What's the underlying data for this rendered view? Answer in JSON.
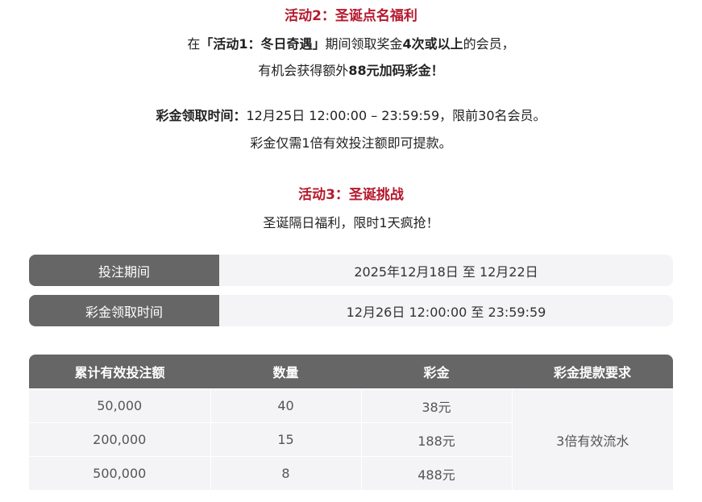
{
  "activity2": {
    "title": "活动2：圣诞点名福利",
    "line1": {
      "pre": "在",
      "bold1": "「活动1：冬日奇遇」",
      "mid": "期间领取奖金",
      "bold2": "4次或以上",
      "post": "的会员，"
    },
    "line2": {
      "pre": "有机会获得额外",
      "bold": "88元加码彩金！"
    },
    "time_label": "彩金领取时间：",
    "time_text": "12月25日 12:00:00 – 23:59:59，限前30名会员。",
    "note": "彩金仅需1倍有效投注额即可提款。"
  },
  "activity3": {
    "title": "活动3：圣诞挑战",
    "subtitle": "圣诞隔日福利，限时1天疯抢！",
    "info": [
      {
        "label": "投注期间",
        "value": "2025年12月18日 至 12月22日"
      },
      {
        "label": "彩金领取时间",
        "value": "12月26日 12:00:00 至 23:59:59"
      }
    ],
    "table": {
      "headers": [
        "累计有效投注额",
        "数量",
        "彩金",
        "彩金提款要求"
      ],
      "rows": [
        [
          "50,000",
          "40",
          "38元"
        ],
        [
          "200,000",
          "15",
          "188元"
        ],
        [
          "500,000",
          "8",
          "488元"
        ]
      ],
      "requirement": "3倍有效流水"
    }
  },
  "colors": {
    "title": "#b5192e",
    "header_bg": "#666666",
    "cell_bg": "#f4f4f6"
  }
}
